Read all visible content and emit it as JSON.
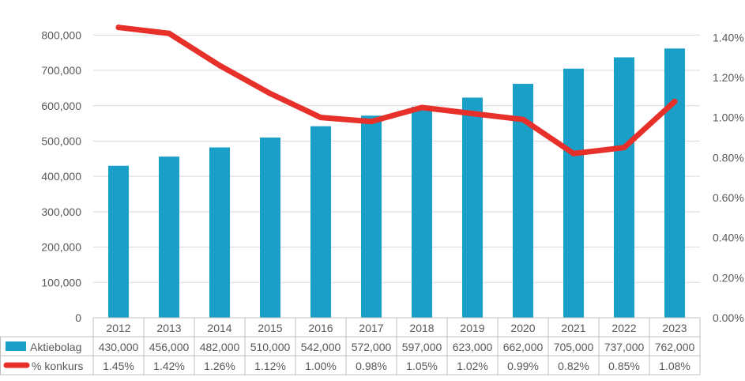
{
  "chart_data": {
    "type": "bar",
    "categories": [
      "2012",
      "2013",
      "2014",
      "2015",
      "2016",
      "2017",
      "2018",
      "2019",
      "2020",
      "2021",
      "2022",
      "2023"
    ],
    "series": [
      {
        "name": "Aktiebolag",
        "kind": "bar",
        "axis": "left",
        "color": "#1aa0c8",
        "values": [
          430000,
          456000,
          482000,
          510000,
          542000,
          572000,
          597000,
          623000,
          662000,
          705000,
          737000,
          762000
        ],
        "labels": [
          "430,000",
          "456,000",
          "482,000",
          "510,000",
          "542,000",
          "572,000",
          "597,000",
          "623,000",
          "662,000",
          "705,000",
          "737,000",
          "762,000"
        ]
      },
      {
        "name": "% konkurs",
        "kind": "line",
        "axis": "right",
        "color": "#e8302a",
        "values": [
          1.45,
          1.42,
          1.26,
          1.12,
          1.0,
          0.98,
          1.05,
          1.02,
          0.99,
          0.82,
          0.85,
          1.08
        ],
        "labels": [
          "1.45%",
          "1.42%",
          "1.26%",
          "1.12%",
          "1.00%",
          "0.98%",
          "1.05%",
          "1.02%",
          "0.99%",
          "0.82%",
          "0.85%",
          "1.08%"
        ]
      }
    ],
    "ylim_left": [
      0,
      850000
    ],
    "ylim_right": [
      0,
      1.5
    ],
    "yticks_left": [
      "0",
      "100,000",
      "200,000",
      "300,000",
      "400,000",
      "500,000",
      "600,000",
      "700,000",
      "800,000"
    ],
    "yticks_right": [
      "0.00%",
      "0.20%",
      "0.40%",
      "0.60%",
      "0.80%",
      "1.00%",
      "1.20%",
      "1.40%"
    ],
    "data_table": true,
    "grid": true
  }
}
